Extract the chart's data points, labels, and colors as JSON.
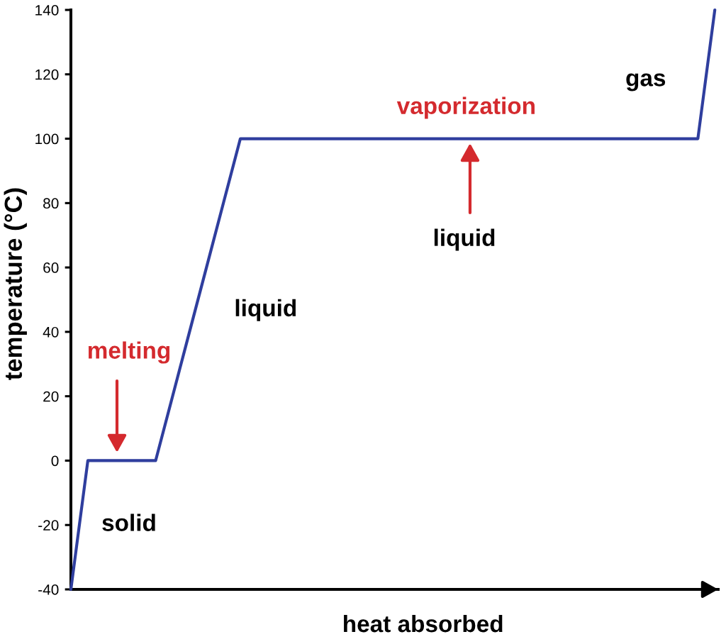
{
  "chart_data": {
    "type": "line",
    "xlabel": "heat absorbed",
    "ylabel": "temperature (°C)",
    "categories": [
      null,
      null,
      null,
      null,
      null,
      null,
      null,
      null,
      null,
      null,
      null,
      null,
      null,
      null,
      null,
      null,
      null,
      null,
      null,
      null,
      null,
      null,
      null,
      null,
      null,
      null,
      null,
      null,
      null,
      null,
      null,
      null,
      null,
      null,
      null,
      null,
      null,
      null,
      null
    ],
    "series": [
      {
        "color": "#2f3e9e",
        "values": [
          -40,
          0,
          0,
          0,
          0,
          0,
          20,
          40,
          60,
          80,
          100,
          100,
          100,
          100,
          100,
          100,
          100,
          100,
          100,
          100,
          100,
          100,
          100,
          100,
          100,
          100,
          100,
          100,
          100,
          100,
          100,
          100,
          100,
          100,
          100,
          100,
          100,
          100,
          140
        ]
      }
    ],
    "ylim": [
      -40,
      140
    ],
    "yticks": [
      -40,
      -20,
      0,
      20,
      40,
      60,
      80,
      100,
      120,
      140
    ],
    "tick_labels": "y",
    "annotations": [
      "melting",
      "vaporization",
      "liquid",
      "solid",
      "liquid",
      "gas"
    ]
  }
}
